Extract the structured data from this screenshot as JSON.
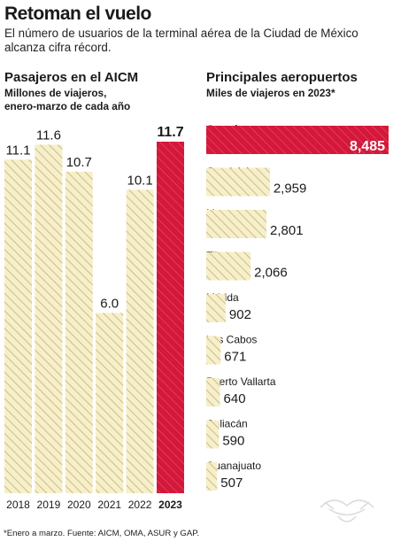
{
  "header": {
    "title": "Retoman el vuelo",
    "subtitle": "El número de usuarios de la terminal aérea de la Ciudad de México alcanza cifra récord."
  },
  "footnote": "*Enero a marzo. Fuente: AICM, OMA, ASUR y GAP.",
  "chart_data": [
    {
      "type": "bar",
      "title": "Pasajeros en el AICM",
      "subtitle": "Millones de viajeros, enero-marzo de cada año",
      "subtitle_lines": [
        "Millones de viajeros,",
        "enero-marzo de cada año"
      ],
      "categories": [
        "2018",
        "2019",
        "2020",
        "2021",
        "2022",
        "2023"
      ],
      "values": [
        11.1,
        11.6,
        10.7,
        6.0,
        10.1,
        11.7
      ],
      "labels": [
        "11.1",
        "11.6",
        "10.7",
        "6.0",
        "10.1",
        "11.7"
      ],
      "highlight_index": 5,
      "ylim": [
        0,
        11.7
      ],
      "grid": false
    },
    {
      "type": "bar",
      "orientation": "horizontal",
      "title": "Principales aeropuertos",
      "subtitle": "Miles de viajeros en 2023*",
      "categories": [
        "Cancún",
        "Guadalajara",
        "Monterrey",
        "Tijuana",
        "Mérida",
        "Los Cabos",
        "Puerto Vallarta",
        "Culiacán",
        "Guanajuato"
      ],
      "values": [
        8485,
        2959,
        2801,
        2066,
        902,
        671,
        640,
        590,
        507
      ],
      "labels": [
        "8,485",
        "2,959",
        "2,801",
        "2,066",
        "902",
        "671",
        "640",
        "590",
        "507"
      ],
      "highlight_index": 0,
      "xlim": [
        0,
        8485
      ],
      "grid": false
    }
  ],
  "colors": {
    "bar_fill": "#f6efc9",
    "bar_hatch": "#c9bd8a",
    "highlight": "#d4173a",
    "highlight_hatch": "#e04a66",
    "text": "#1a1a1a"
  }
}
